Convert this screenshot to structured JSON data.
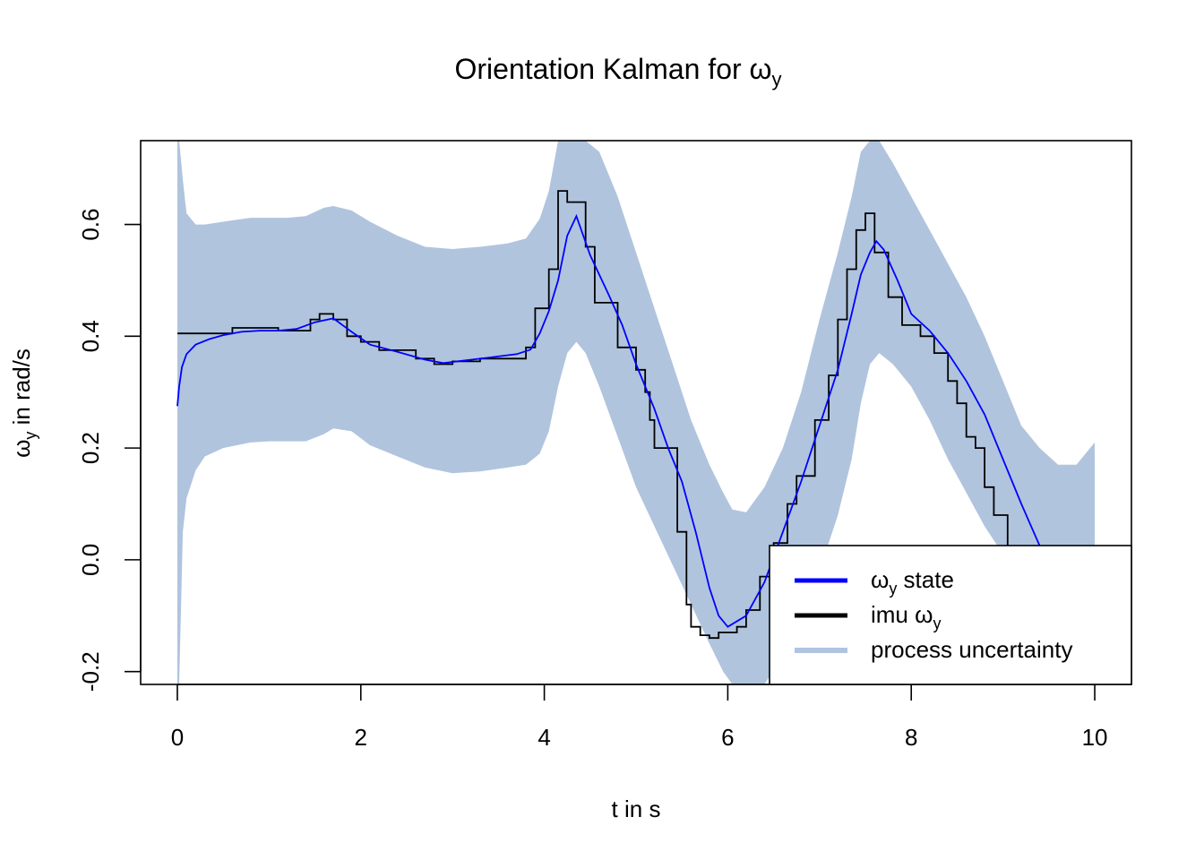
{
  "chart_data": {
    "type": "line",
    "title": {
      "main": "Orientation Kalman for ",
      "symbol": "ω",
      "sub": "y"
    },
    "xlabel": "t in s",
    "ylabel": {
      "symbol": "ω",
      "sub": "y",
      "rest": " in rad/s"
    },
    "xlim": [
      -0.4,
      10.4
    ],
    "ylim": [
      -0.223,
      0.75
    ],
    "x_ticks": [
      0,
      2,
      4,
      6,
      8,
      10
    ],
    "x_tick_labels": [
      "0",
      "2",
      "4",
      "6",
      "8",
      "10"
    ],
    "y_ticks": [
      -0.2,
      0.0,
      0.2,
      0.4,
      0.6
    ],
    "y_tick_labels": [
      "-0.2",
      "0.0",
      "0.2",
      "0.4",
      "0.6"
    ],
    "grid": false,
    "legend_position": "bottom-right",
    "legend": [
      {
        "symbol": "ω",
        "sub": "y",
        "suffix": "  state",
        "prefix": "",
        "color": "#0000ff"
      },
      {
        "prefix": "imu  ",
        "symbol": "ω",
        "sub": "y",
        "suffix": "",
        "color": "#000000"
      },
      {
        "prefix": "process uncertainty",
        "symbol": "",
        "sub": "",
        "suffix": "",
        "color": "#b0c4de"
      }
    ],
    "series": [
      {
        "kind": "band",
        "color": "#b0c4de",
        "x": [
          0,
          0.02,
          0.06,
          0.1,
          0.2,
          0.3,
          0.5,
          0.8,
          1.0,
          1.2,
          1.4,
          1.6,
          1.7,
          1.9,
          2.1,
          2.4,
          2.7,
          3.0,
          3.3,
          3.6,
          3.8,
          3.95,
          4.05,
          4.15,
          4.25,
          4.35,
          4.45,
          4.6,
          4.8,
          5.0,
          5.2,
          5.4,
          5.6,
          5.8,
          5.95,
          6.05,
          6.2,
          6.4,
          6.6,
          6.8,
          7.0,
          7.2,
          7.35,
          7.45,
          7.55,
          7.65,
          7.8,
          8.0,
          8.2,
          8.4,
          8.6,
          8.8,
          9.0,
          9.2,
          9.4,
          9.6,
          9.8,
          10.0
        ],
        "upper": [
          0.75,
          0.75,
          0.68,
          0.62,
          0.6,
          0.6,
          0.605,
          0.612,
          0.612,
          0.612,
          0.615,
          0.63,
          0.633,
          0.625,
          0.605,
          0.58,
          0.56,
          0.556,
          0.56,
          0.566,
          0.575,
          0.61,
          0.66,
          0.75,
          0.75,
          0.75,
          0.75,
          0.73,
          0.65,
          0.55,
          0.45,
          0.35,
          0.25,
          0.17,
          0.12,
          0.09,
          0.085,
          0.13,
          0.2,
          0.3,
          0.43,
          0.55,
          0.65,
          0.73,
          0.75,
          0.75,
          0.71,
          0.65,
          0.59,
          0.53,
          0.47,
          0.4,
          0.32,
          0.24,
          0.2,
          0.17,
          0.17,
          0.21
        ],
        "lower": [
          -0.223,
          -0.223,
          0.05,
          0.11,
          0.16,
          0.185,
          0.2,
          0.21,
          0.212,
          0.212,
          0.212,
          0.225,
          0.235,
          0.23,
          0.205,
          0.185,
          0.165,
          0.155,
          0.158,
          0.165,
          0.17,
          0.19,
          0.23,
          0.31,
          0.37,
          0.39,
          0.37,
          0.31,
          0.22,
          0.13,
          0.06,
          -0.01,
          -0.08,
          -0.15,
          -0.2,
          -0.223,
          -0.223,
          -0.223,
          -0.17,
          -0.1,
          -0.02,
          0.08,
          0.18,
          0.28,
          0.35,
          0.37,
          0.35,
          0.31,
          0.25,
          0.18,
          0.12,
          0.06,
          0.01,
          -0.02,
          -0.04,
          -0.05,
          -0.05,
          -0.05
        ]
      },
      {
        "name": "ωy state",
        "kind": "line",
        "color": "#0000ff",
        "x": [
          0,
          0.02,
          0.05,
          0.1,
          0.2,
          0.35,
          0.5,
          0.7,
          0.9,
          1.1,
          1.3,
          1.5,
          1.7,
          1.9,
          2.1,
          2.4,
          2.7,
          2.9,
          3.1,
          3.4,
          3.7,
          3.85,
          3.95,
          4.05,
          4.15,
          4.25,
          4.35,
          4.5,
          4.7,
          4.85,
          5.0,
          5.2,
          5.35,
          5.5,
          5.65,
          5.8,
          5.9,
          6.0,
          6.2,
          6.4,
          6.6,
          6.8,
          7.0,
          7.2,
          7.35,
          7.45,
          7.55,
          7.62,
          7.7,
          7.85,
          8.0,
          8.2,
          8.4,
          8.6,
          8.8,
          9.0,
          9.2,
          9.4
        ],
        "y": [
          0.275,
          0.31,
          0.345,
          0.368,
          0.385,
          0.395,
          0.402,
          0.408,
          0.41,
          0.41,
          0.413,
          0.425,
          0.432,
          0.408,
          0.385,
          0.372,
          0.358,
          0.352,
          0.356,
          0.362,
          0.368,
          0.376,
          0.405,
          0.445,
          0.5,
          0.58,
          0.615,
          0.545,
          0.475,
          0.42,
          0.35,
          0.27,
          0.2,
          0.14,
          0.05,
          -0.05,
          -0.1,
          -0.12,
          -0.1,
          -0.04,
          0.05,
          0.14,
          0.24,
          0.34,
          0.44,
          0.51,
          0.55,
          0.57,
          0.555,
          0.5,
          0.44,
          0.41,
          0.37,
          0.32,
          0.26,
          0.18,
          0.1,
          0.025
        ]
      },
      {
        "name": "imu ωy",
        "kind": "step",
        "color": "#000000",
        "x": [
          0,
          0.2,
          0.6,
          1.1,
          1.45,
          1.55,
          1.7,
          1.85,
          2.0,
          2.2,
          2.6,
          2.8,
          3.0,
          3.3,
          3.8,
          3.9,
          4.05,
          4.15,
          4.25,
          4.45,
          4.55,
          4.8,
          5.0,
          5.1,
          5.15,
          5.2,
          5.35,
          5.45,
          5.55,
          5.6,
          5.7,
          5.8,
          5.9,
          6.1,
          6.2,
          6.35,
          6.5,
          6.65,
          6.75,
          6.95,
          7.1,
          7.2,
          7.3,
          7.4,
          7.5,
          7.6,
          7.75,
          7.9,
          8.1,
          8.25,
          8.4,
          8.5,
          8.6,
          8.7,
          8.8,
          8.9,
          9.05,
          9.1
        ],
        "y": [
          0.405,
          0.405,
          0.415,
          0.41,
          0.43,
          0.44,
          0.43,
          0.4,
          0.39,
          0.375,
          0.36,
          0.35,
          0.355,
          0.36,
          0.38,
          0.45,
          0.52,
          0.66,
          0.64,
          0.56,
          0.46,
          0.38,
          0.34,
          0.3,
          0.25,
          0.2,
          0.2,
          0.05,
          -0.08,
          -0.12,
          -0.135,
          -0.14,
          -0.13,
          -0.12,
          -0.09,
          -0.03,
          0.03,
          0.1,
          0.15,
          0.25,
          0.33,
          0.43,
          0.52,
          0.59,
          0.62,
          0.55,
          0.47,
          0.42,
          0.4,
          0.37,
          0.32,
          0.28,
          0.22,
          0.2,
          0.13,
          0.08,
          0.02,
          0.0
        ]
      }
    ]
  }
}
